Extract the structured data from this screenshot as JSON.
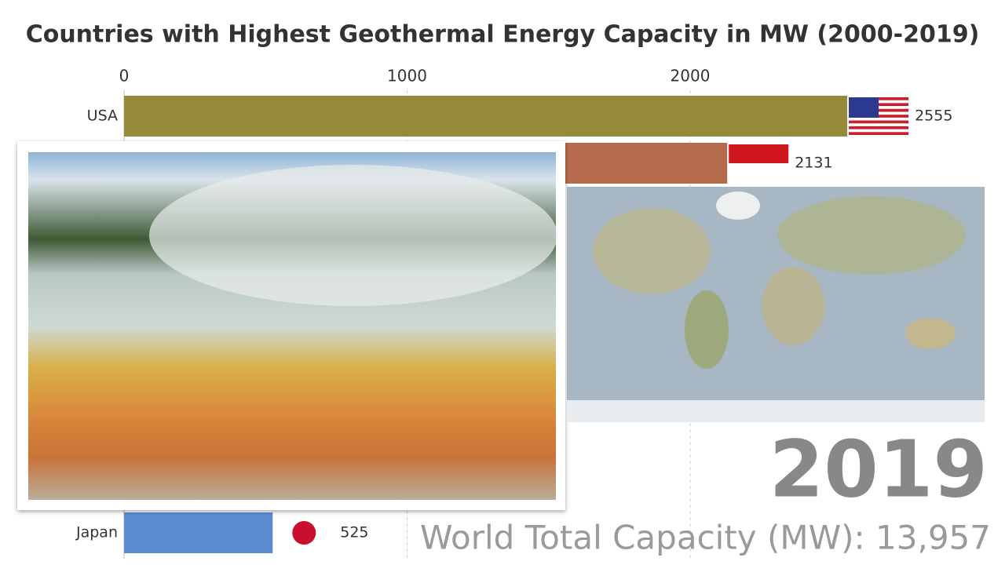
{
  "chart_data": {
    "type": "bar",
    "orientation": "horizontal",
    "title": "Countries with Highest Geothermal Energy Capacity in MW (2000-2019)",
    "categories": [
      "USA",
      null,
      "Japan"
    ],
    "values": [
      2555,
      2131,
      525
    ],
    "colors": [
      "#948a3a",
      "#b66c4c",
      "#5b8ad0"
    ],
    "xlim": [
      0,
      3000
    ],
    "xticks": [
      0,
      1000,
      2000
    ],
    "grid": true,
    "annotations": [
      "2019",
      "World Total Capacity (MW): 13,957"
    ]
  }
}
